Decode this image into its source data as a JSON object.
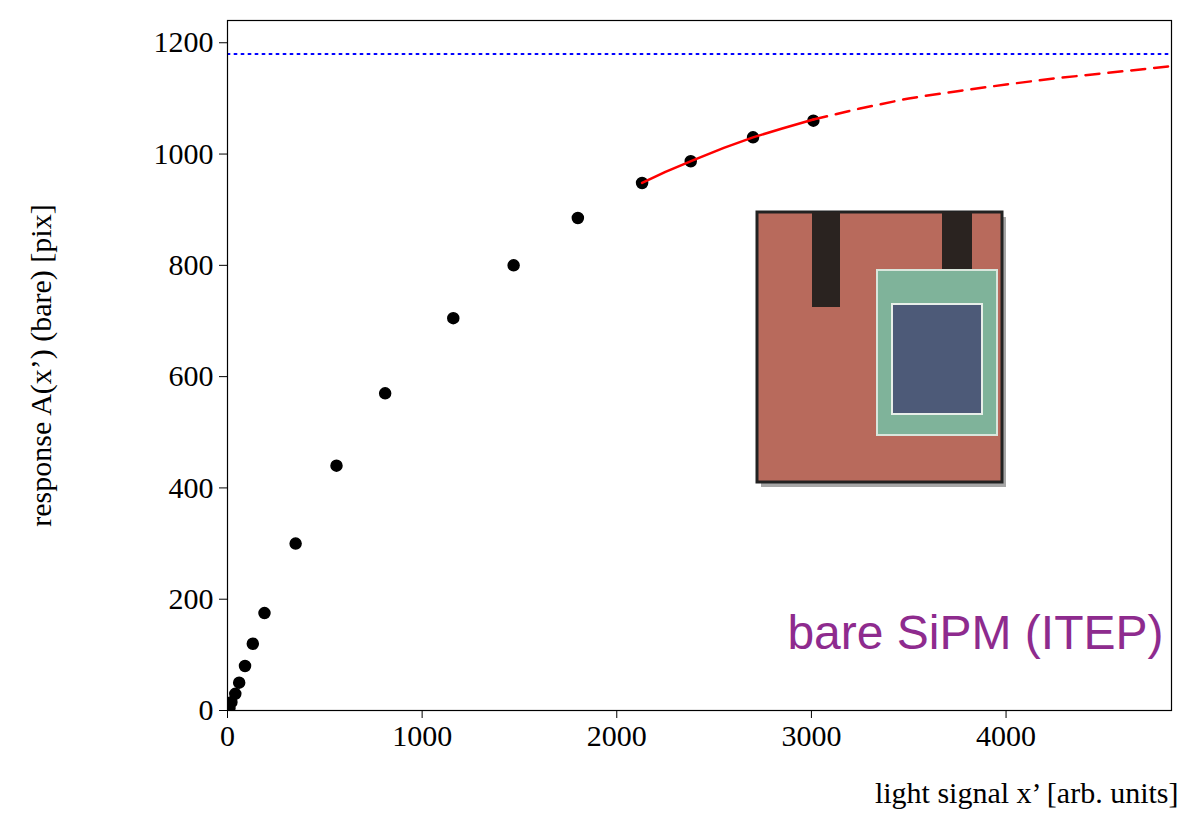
{
  "chart_data": {
    "type": "scatter",
    "xlabel": "light signal x’ [arb. units]",
    "ylabel": "response A(x’) (bare) [pix]",
    "annotations": [
      "bare SiPM (ITEP)"
    ],
    "xlim": [
      0,
      4850
    ],
    "ylim": [
      0,
      1240
    ],
    "xticks": [
      0,
      1000,
      2000,
      3000,
      4000
    ],
    "yticks": [
      0,
      200,
      400,
      600,
      800,
      1000,
      1200
    ],
    "grid": false,
    "series": [
      {
        "type": "scatter",
        "color": "black",
        "marker": "circle",
        "x": [
          0,
          10,
          20,
          40,
          60,
          90,
          130,
          190,
          350,
          560,
          810,
          1160,
          1470,
          1800,
          2130,
          2380,
          2700,
          3010
        ],
        "values": [
          0,
          5,
          15,
          30,
          50,
          80,
          120,
          175,
          300,
          440,
          570,
          705,
          800,
          885,
          948,
          987,
          1030,
          1060
        ]
      },
      {
        "type": "line",
        "color": "red",
        "line_style": "solid",
        "x": [
          2130,
          2250,
          2400,
          2550,
          2700,
          2850,
          3010
        ],
        "values": [
          948,
          968,
          990,
          1011,
          1030,
          1046,
          1062
        ]
      },
      {
        "type": "line",
        "color": "red",
        "line_style": "dashed",
        "x": [
          3010,
          3250,
          3500,
          3750,
          4000,
          4250,
          4500,
          4850
        ],
        "values": [
          1062,
          1082,
          1100,
          1113,
          1125,
          1136,
          1145,
          1158
        ]
      },
      {
        "type": "line",
        "color": "blue",
        "line_style": "dotted",
        "x": [
          0,
          4850
        ],
        "values": [
          1180,
          1180
        ]
      }
    ]
  }
}
